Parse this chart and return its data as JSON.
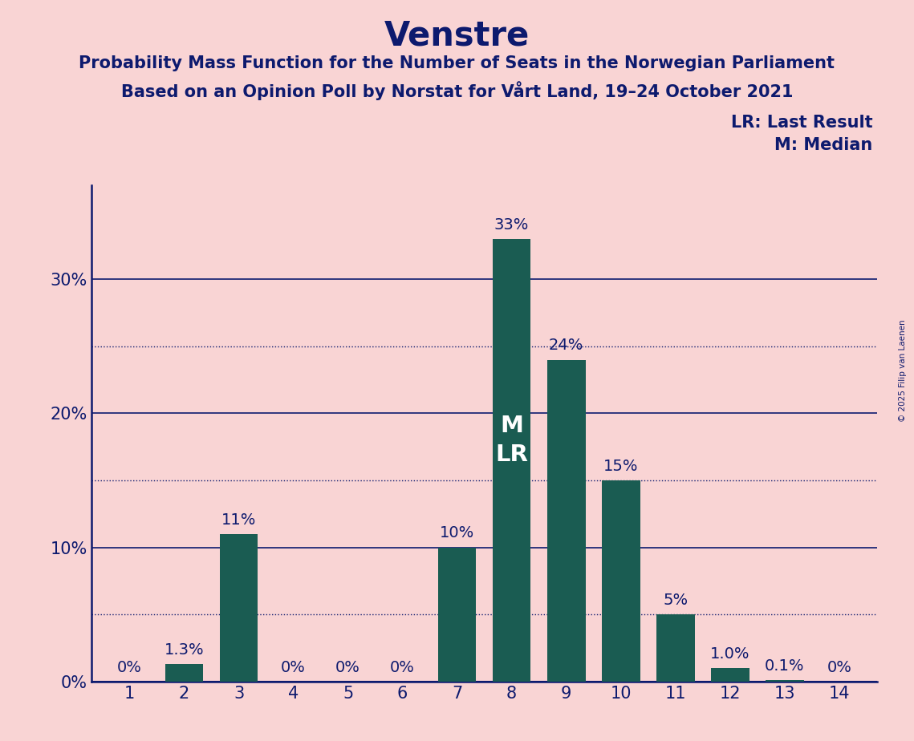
{
  "title": "Venstre",
  "subtitle1": "Probability Mass Function for the Number of Seats in the Norwegian Parliament",
  "subtitle2": "Based on an Opinion Poll by Norstat for Vårt Land, 19–24 October 2021",
  "copyright": "© 2025 Filip van Laenen",
  "categories": [
    1,
    2,
    3,
    4,
    5,
    6,
    7,
    8,
    9,
    10,
    11,
    12,
    13,
    14
  ],
  "values": [
    0.0,
    1.3,
    11.0,
    0.0,
    0.0,
    0.0,
    10.0,
    33.0,
    24.0,
    15.0,
    5.0,
    1.0,
    0.1,
    0.0
  ],
  "labels": [
    "0%",
    "1.3%",
    "11%",
    "0%",
    "0%",
    "0%",
    "10%",
    "33%",
    "24%",
    "15%",
    "5%",
    "1.0%",
    "0.1%",
    "0%"
  ],
  "bar_color": "#1a5c52",
  "background_color": "#f9d4d4",
  "text_color": "#0d1a6e",
  "median_bar": 8,
  "legend_lr": "LR: Last Result",
  "legend_m": "M: Median",
  "ylabel_solid_ticks": [
    0,
    10,
    20,
    30
  ],
  "ylabel_dotted_ticks": [
    5,
    15,
    25
  ],
  "ylim": [
    0,
    37
  ],
  "title_fontsize": 30,
  "subtitle_fontsize": 15,
  "tick_fontsize": 15,
  "bar_label_fontsize": 14,
  "legend_fontsize": 15,
  "inside_label_fontsize": 21,
  "copyright_fontsize": 7.5
}
